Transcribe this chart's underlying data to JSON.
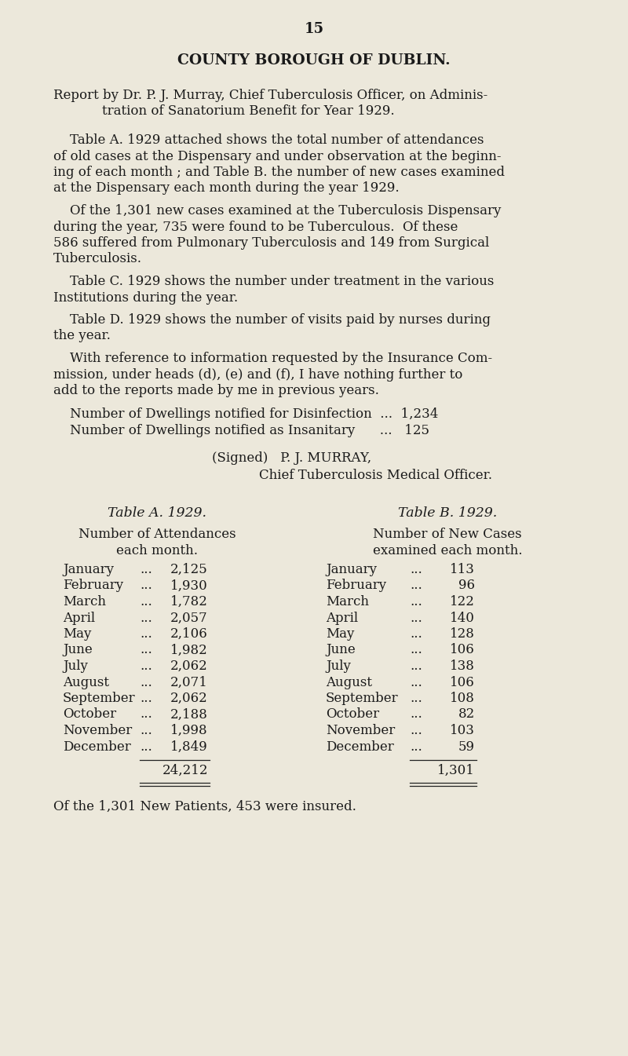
{
  "page_number": "15",
  "title": "COUNTY BOROUGH OF DUBLIN.",
  "background_color": "#ece8db",
  "text_color": "#1a1a1a",
  "table_a_title": "Table A. 1929.",
  "table_a_subtitle1": "Number of Attendances",
  "table_a_subtitle2": "each month.",
  "table_a_months": [
    "January",
    "February",
    "March",
    "April",
    "May",
    "June",
    "July",
    "August",
    "September",
    "October",
    "November",
    "December"
  ],
  "table_a_values": [
    "2,125",
    "1,930",
    "1,782",
    "2,057",
    "2,106",
    "1,982",
    "2,062",
    "2,071",
    "2,062",
    "2,188",
    "1,998",
    "1,849"
  ],
  "table_a_total": "24,212",
  "table_b_title": "Table B. 1929.",
  "table_b_subtitle1": "Number of New Cases",
  "table_b_subtitle2": "examined each month.",
  "table_b_months": [
    "January",
    "February",
    "March",
    "April",
    "May",
    "June",
    "July",
    "August",
    "September",
    "October",
    "November",
    "December"
  ],
  "table_b_values": [
    "113",
    "96",
    "122",
    "140",
    "128",
    "106",
    "138",
    "106",
    "108",
    "82",
    "103",
    "59"
  ],
  "table_b_total": "1,301",
  "footer": "Of the 1,301 New Patients, 453 were insured."
}
